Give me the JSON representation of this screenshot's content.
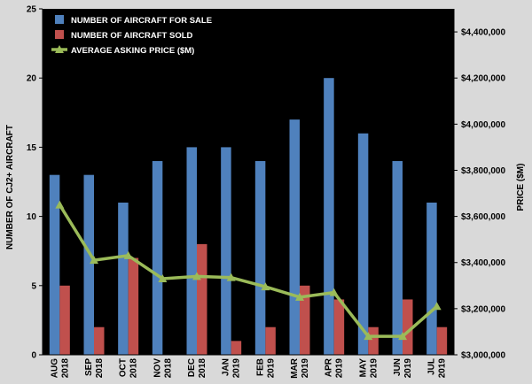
{
  "chart_data": {
    "type": "bar",
    "categories": [
      [
        "AUG",
        "2018"
      ],
      [
        "SEP",
        "2018"
      ],
      [
        "OCT",
        "2018"
      ],
      [
        "NOV",
        "2018"
      ],
      [
        "DEC",
        "2018"
      ],
      [
        "JAN",
        "2019"
      ],
      [
        "FEB",
        "2019"
      ],
      [
        "MAR",
        "2019"
      ],
      [
        "APR",
        "2019"
      ],
      [
        "MAY",
        "2019"
      ],
      [
        "JUN",
        "2019"
      ],
      [
        "JUL",
        "2019"
      ]
    ],
    "series": [
      {
        "name": "NUMBER OF AIRCRAFT FOR SALE",
        "kind": "bar",
        "axis": "left",
        "color": "#4f81bd",
        "values": [
          13,
          13,
          11,
          14,
          15,
          15,
          14,
          17,
          20,
          16,
          14,
          11
        ]
      },
      {
        "name": "NUMBER OF AIRCRAFT SOLD",
        "kind": "bar",
        "axis": "left",
        "color": "#c0504d",
        "values": [
          5,
          2,
          7,
          0,
          8,
          1,
          2,
          5,
          4,
          2,
          4,
          2
        ]
      },
      {
        "name": "AVERAGE ASKING PRICE ($M)",
        "kind": "line",
        "axis": "right",
        "color": "#9bbb59",
        "values": [
          3650000,
          3410000,
          3430000,
          3330000,
          3340000,
          3335000,
          3295000,
          3250000,
          3270000,
          3080000,
          3080000,
          3210000
        ]
      }
    ],
    "ylabel_left": "NUMBER OF CJ2+ AIRCRAFT",
    "ylabel_right": "PRICE ($M)",
    "ylim_left": [
      0,
      25
    ],
    "yticks_left": [
      0,
      5,
      10,
      15,
      20,
      25
    ],
    "ylim_right": [
      3000000,
      4500000
    ],
    "yticks_right": [
      3000000,
      3200000,
      3400000,
      3600000,
      3800000,
      4000000,
      4200000,
      4400000
    ],
    "yticks_right_labels": [
      "$3,000,000",
      "$3,200,000",
      "$3,400,000",
      "$3,600,000",
      "$3,800,000",
      "$4,000,000",
      "$4,200,000",
      "$4,400,000"
    ],
    "legend_position": "top-left",
    "grid": false,
    "plot_background": "#000000",
    "page_background": "#d9d9d9"
  }
}
